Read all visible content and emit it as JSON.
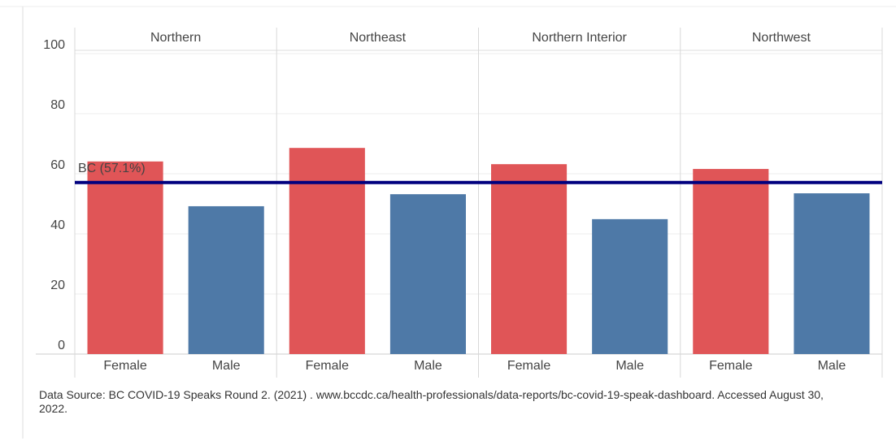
{
  "chart_data": {
    "type": "bar",
    "categories": [
      "Northern",
      "Northeast",
      "Northern Interior",
      "Northwest"
    ],
    "series": [
      {
        "name": "Female",
        "color": "#e05557",
        "values": [
          64.1,
          68.6,
          63.2,
          61.6
        ]
      },
      {
        "name": "Male",
        "color": "#4e79a7",
        "values": [
          49.2,
          53.2,
          44.9,
          53.5
        ]
      }
    ],
    "ylim": [
      0,
      100
    ],
    "yticks": [
      0,
      20,
      40,
      60,
      80,
      100
    ],
    "grid": true,
    "reference_line": {
      "value": 57.1,
      "label": "BC (57.1%)",
      "color": "#00007f"
    },
    "source": "Data Source: BC COVID-19 Speaks Round 2. (2021) .  www.bccdc.ca/health-professionals/data-reports/bc-covid-19-speak-dashboard.  Accessed August 30, 2022."
  }
}
